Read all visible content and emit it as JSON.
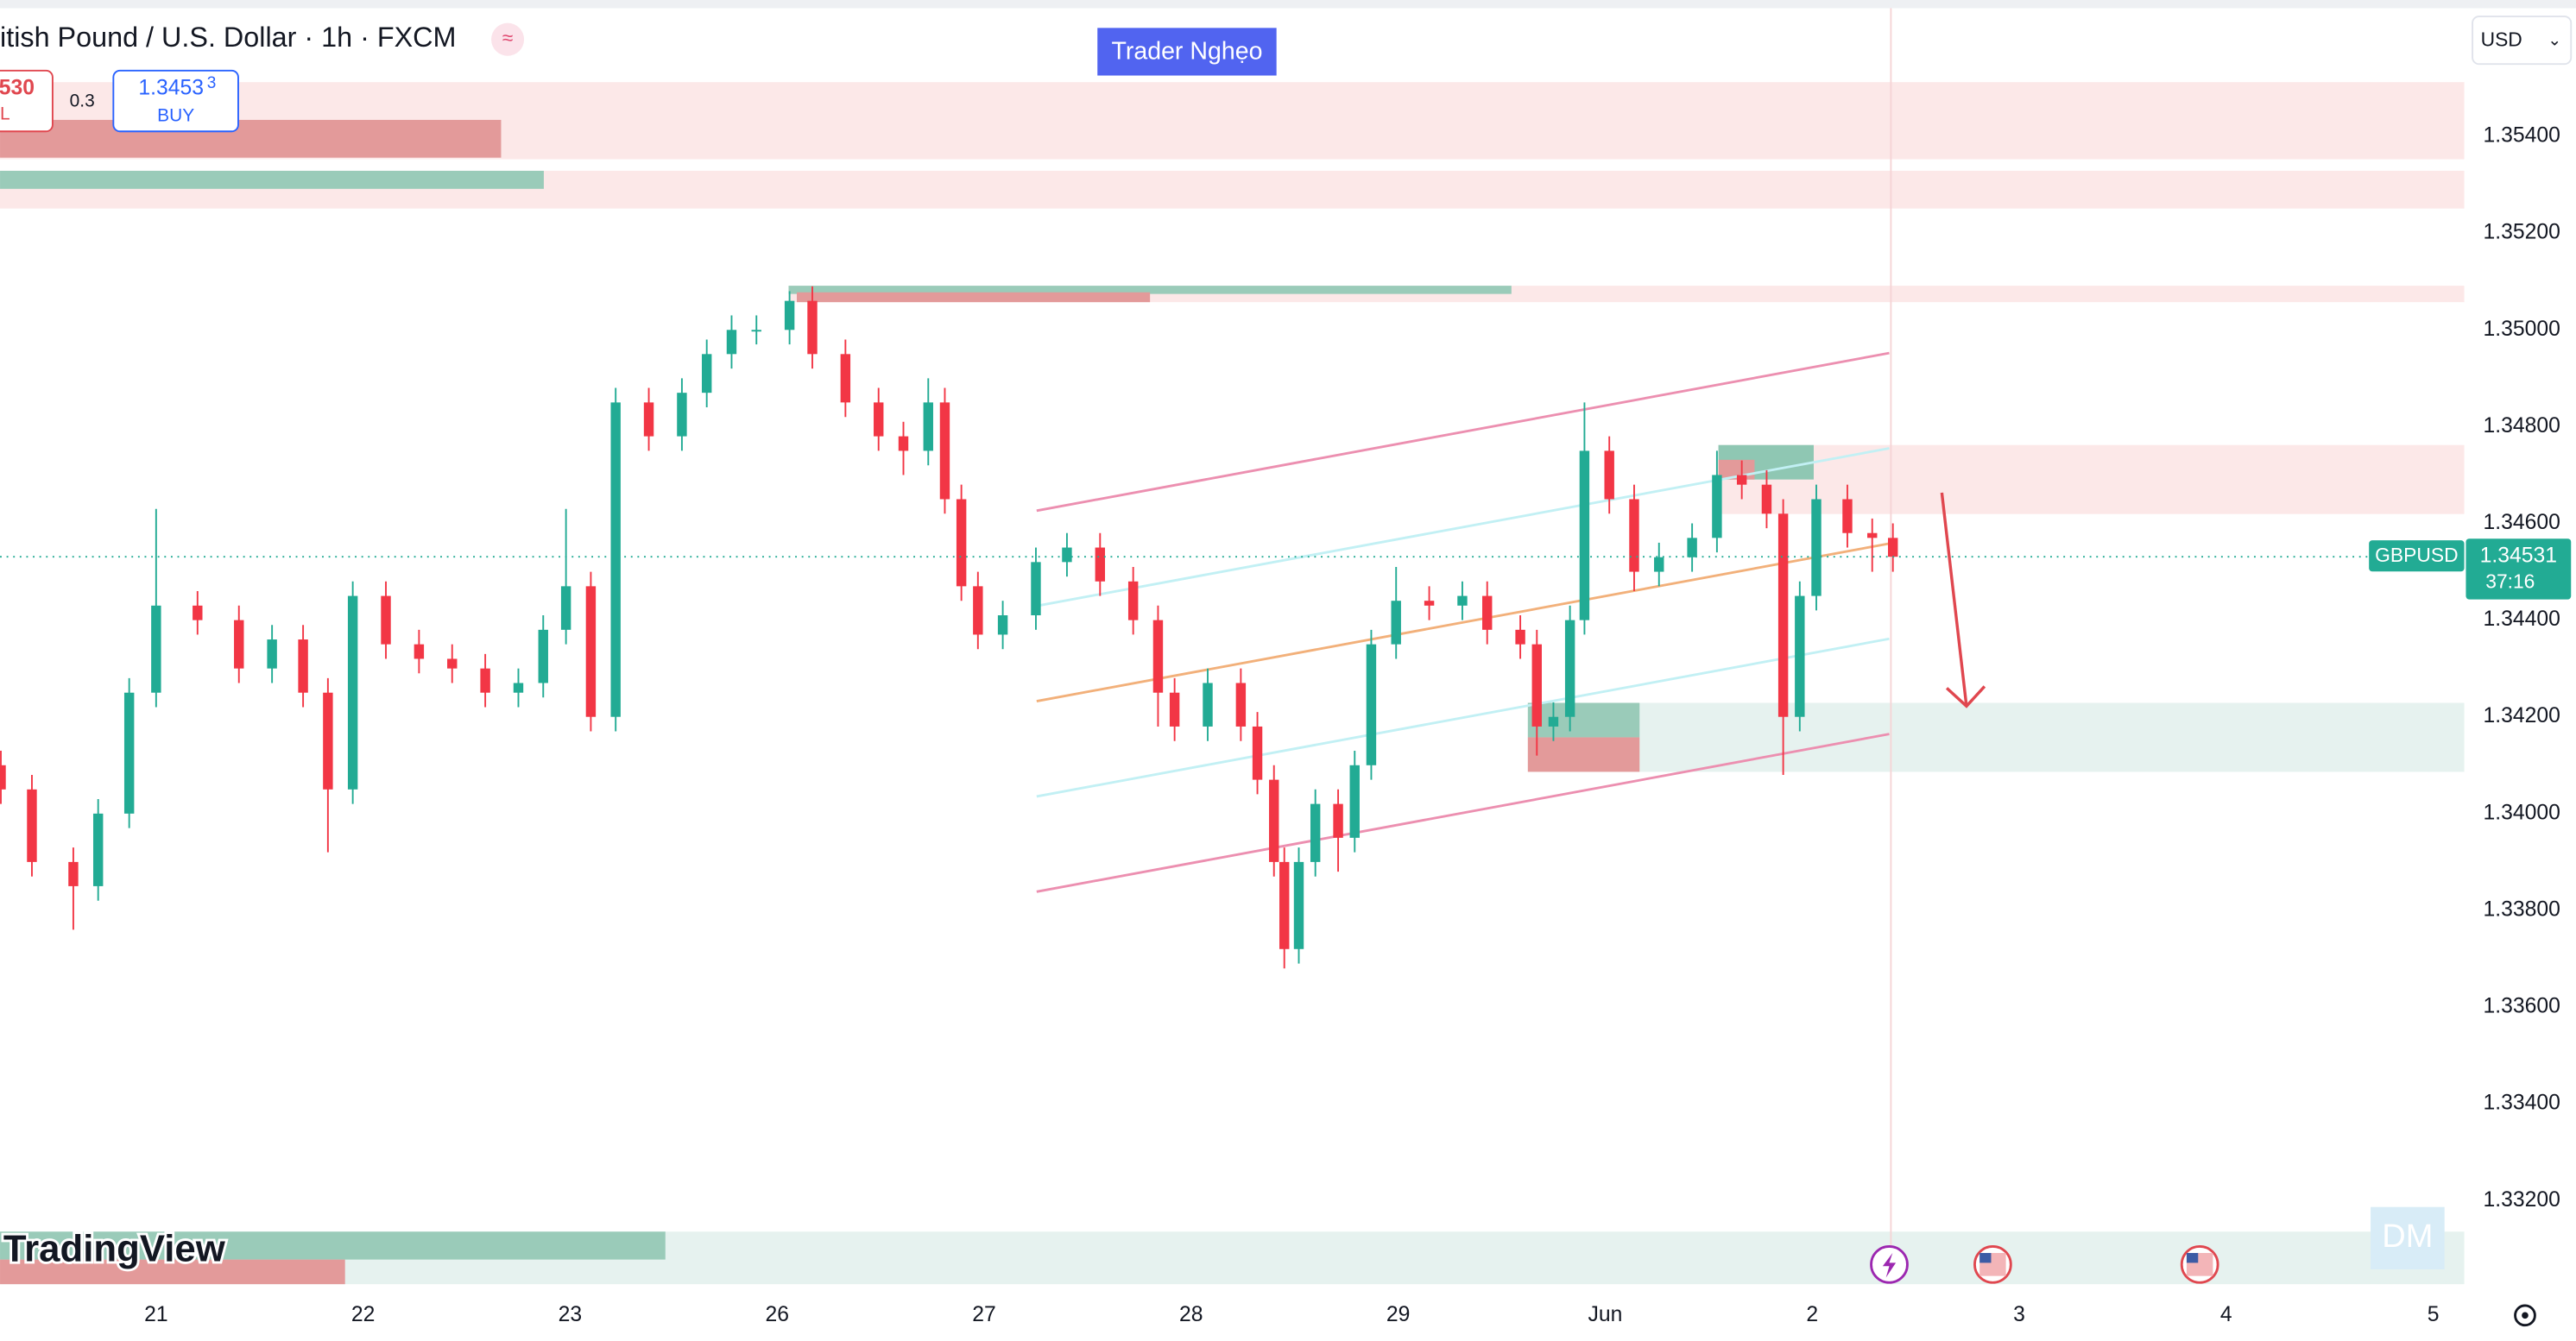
{
  "header": {
    "title": "itish Pound / U.S. Dollar · 1h · FXCM",
    "badge": "Trader Nghẹo",
    "currency": "USD",
    "sell_price": "530",
    "sell_label": "L",
    "spread": "0.3",
    "buy_price_main": "1.3453",
    "buy_price_small": "3",
    "buy_label": "BUY"
  },
  "chart_data": {
    "type": "candlestick",
    "symbol": "GBPUSD",
    "countdown": "37:16",
    "up_color": "#22ab94",
    "down_color": "#f23645",
    "grid": false,
    "x": [
      -0.75,
      -0.6,
      -0.4,
      -0.28,
      -0.13,
      0,
      0.2,
      0.4,
      0.56,
      0.71,
      0.83,
      0.95,
      1.11,
      1.27,
      1.43,
      1.59,
      1.75,
      1.87,
      1.98,
      2.1,
      2.22,
      2.38,
      2.54,
      2.66,
      2.78,
      2.9,
      3.06,
      3.17,
      3.33,
      3.49,
      3.61,
      3.73,
      3.81,
      3.89,
      3.97,
      4.09,
      4.25,
      4.4,
      4.56,
      4.72,
      4.84,
      4.92,
      5.08,
      5.24,
      5.32,
      5.4,
      5.45,
      5.52,
      5.6,
      5.71,
      5.79,
      5.87,
      5.99,
      6.15,
      6.31,
      6.43,
      6.59,
      6.67,
      6.75,
      6.83,
      6.9,
      7.02,
      7.14,
      7.26,
      7.42,
      7.54,
      7.66,
      7.78,
      7.86,
      7.94,
      8.02,
      8.17,
      8.29,
      8.39
    ],
    "open": [
      1.341,
      1.3405,
      1.339,
      1.3385,
      1.34,
      1.3425,
      1.3443,
      1.344,
      1.343,
      1.3436,
      1.3425,
      1.3405,
      1.3445,
      1.3435,
      1.3432,
      1.343,
      1.3425,
      1.3427,
      1.3438,
      1.3447,
      1.342,
      1.3485,
      1.3478,
      1.3487,
      1.3495,
      1.35,
      1.35,
      1.3506,
      1.3495,
      1.3485,
      1.3478,
      1.3475,
      1.3485,
      1.3465,
      1.3447,
      1.3437,
      1.3441,
      1.3452,
      1.3455,
      1.3448,
      1.344,
      1.3425,
      1.3418,
      1.3427,
      1.3418,
      1.3407,
      1.339,
      1.3372,
      1.339,
      1.3402,
      1.3395,
      1.341,
      1.3435,
      1.3444,
      1.3443,
      1.3445,
      1.3438,
      1.3435,
      1.3418,
      1.342,
      1.344,
      1.3475,
      1.3465,
      1.345,
      1.3453,
      1.3457,
      1.347,
      1.3468,
      1.3462,
      1.342,
      1.3445,
      1.3465,
      1.3458,
      1.3457
    ],
    "high": [
      1.3413,
      1.3408,
      1.3393,
      1.3403,
      1.3428,
      1.3463,
      1.3446,
      1.3443,
      1.3439,
      1.3439,
      1.3428,
      1.3448,
      1.3448,
      1.3438,
      1.3435,
      1.3433,
      1.343,
      1.3441,
      1.3463,
      1.345,
      1.3488,
      1.3488,
      1.349,
      1.3498,
      1.3503,
      1.3503,
      1.3508,
      1.3509,
      1.3498,
      1.3488,
      1.3481,
      1.349,
      1.3488,
      1.3468,
      1.345,
      1.3444,
      1.3455,
      1.3458,
      1.3458,
      1.3451,
      1.3443,
      1.3428,
      1.343,
      1.343,
      1.3421,
      1.341,
      1.3393,
      1.3393,
      1.3405,
      1.3405,
      1.3413,
      1.3438,
      1.3451,
      1.3447,
      1.3448,
      1.3448,
      1.3441,
      1.3438,
      1.3423,
      1.3443,
      1.3485,
      1.3478,
      1.3468,
      1.3456,
      1.346,
      1.3475,
      1.3473,
      1.3471,
      1.3465,
      1.3448,
      1.3468,
      1.3468,
      1.3461,
      1.346
    ],
    "low": [
      1.3402,
      1.3387,
      1.3376,
      1.3382,
      1.3397,
      1.3422,
      1.3437,
      1.3427,
      1.3427,
      1.3422,
      1.3392,
      1.3402,
      1.3432,
      1.3429,
      1.3427,
      1.3422,
      1.3422,
      1.3424,
      1.3435,
      1.3417,
      1.3417,
      1.3475,
      1.3475,
      1.3484,
      1.3492,
      1.3497,
      1.3497,
      1.3492,
      1.3482,
      1.3475,
      1.347,
      1.3472,
      1.3462,
      1.3444,
      1.3434,
      1.3434,
      1.3438,
      1.3449,
      1.3445,
      1.3437,
      1.3418,
      1.3415,
      1.3415,
      1.3415,
      1.3404,
      1.3387,
      1.3368,
      1.3369,
      1.3387,
      1.3388,
      1.3392,
      1.3407,
      1.3432,
      1.344,
      1.344,
      1.3435,
      1.3432,
      1.3412,
      1.3415,
      1.3417,
      1.3437,
      1.3462,
      1.3446,
      1.3447,
      1.345,
      1.3454,
      1.3465,
      1.3459,
      1.3408,
      1.3417,
      1.3442,
      1.3455,
      1.345,
      1.345
    ],
    "close": [
      1.3405,
      1.339,
      1.3385,
      1.34,
      1.3425,
      1.3443,
      1.344,
      1.343,
      1.3436,
      1.3425,
      1.3405,
      1.3445,
      1.3435,
      1.3432,
      1.343,
      1.3425,
      1.3427,
      1.3438,
      1.3447,
      1.342,
      1.3485,
      1.3478,
      1.3487,
      1.3495,
      1.35,
      1.35,
      1.3506,
      1.3495,
      1.3485,
      1.3478,
      1.3475,
      1.3485,
      1.3465,
      1.3447,
      1.3437,
      1.3441,
      1.3452,
      1.3455,
      1.3448,
      1.344,
      1.3425,
      1.3418,
      1.3427,
      1.3418,
      1.3407,
      1.339,
      1.3372,
      1.339,
      1.3402,
      1.3395,
      1.341,
      1.3435,
      1.3444,
      1.3443,
      1.3445,
      1.3438,
      1.3435,
      1.3418,
      1.342,
      1.344,
      1.3475,
      1.3465,
      1.345,
      1.3453,
      1.3457,
      1.347,
      1.3468,
      1.3462,
      1.342,
      1.3445,
      1.3465,
      1.3458,
      1.3457,
      1.34531
    ],
    "xlim": [
      -0.754,
      11.15
    ],
    "xticks": [
      {
        "value": 0,
        "label": "21"
      },
      {
        "value": 1,
        "label": "22"
      },
      {
        "value": 2,
        "label": "23"
      },
      {
        "value": 3,
        "label": "26"
      },
      {
        "value": 4,
        "label": "27"
      },
      {
        "value": 5,
        "label": "28"
      },
      {
        "value": 6,
        "label": "29"
      },
      {
        "value": 7,
        "label": "Jun"
      },
      {
        "value": 8,
        "label": "2"
      },
      {
        "value": 9,
        "label": "3"
      },
      {
        "value": 10,
        "label": "4"
      },
      {
        "value": 11,
        "label": "5"
      }
    ],
    "ylim": [
      1.33,
      1.35682
    ],
    "yticks": [
      {
        "value": 1.354,
        "label": "1.35400"
      },
      {
        "value": 1.352,
        "label": "1.35200"
      },
      {
        "value": 1.35,
        "label": "1.35000"
      },
      {
        "value": 1.348,
        "label": "1.34800"
      },
      {
        "value": 1.346,
        "label": "1.34600"
      },
      {
        "value": 1.344,
        "label": "1.34400"
      },
      {
        "value": 1.342,
        "label": "1.34200"
      },
      {
        "value": 1.34,
        "label": "1.34000"
      },
      {
        "value": 1.338,
        "label": "1.33800"
      },
      {
        "value": 1.336,
        "label": "1.33600"
      },
      {
        "value": 1.334,
        "label": "1.33400"
      },
      {
        "value": 1.332,
        "label": "1.33200"
      }
    ]
  },
  "footer": {
    "logo": "TradingView",
    "watermark": "DM"
  }
}
